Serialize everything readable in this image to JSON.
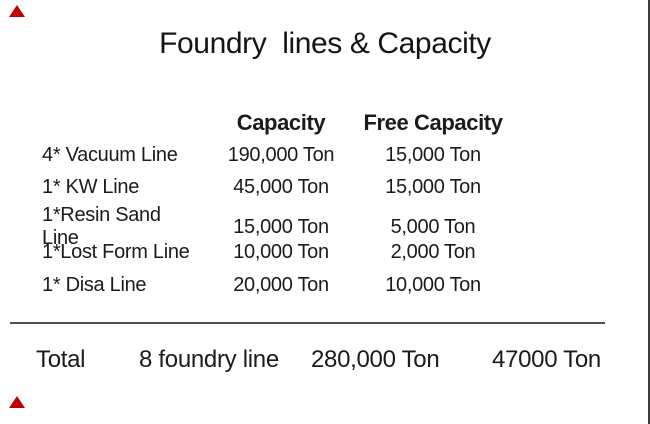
{
  "slide": {
    "title": "Foundry  lines & Capacity"
  },
  "table": {
    "headers": {
      "capacity": "Capacity",
      "free_capacity": "Free Capacity"
    },
    "rows": [
      {
        "label": "4* Vacuum Line",
        "capacity": "190,000 Ton",
        "free": "15,000 Ton"
      },
      {
        "label": "1* KW Line",
        "capacity": "45,000 Ton",
        "free": "15,000 Ton"
      },
      {
        "label": "1*Resin Sand Line",
        "capacity": "15,000 Ton",
        "free": "5,000 Ton"
      },
      {
        "label": "1*Lost Form Line",
        "capacity": "10,000 Ton",
        "free": "2,000 Ton"
      },
      {
        "label": "1* Disa Line",
        "capacity": "20,000 Ton",
        "free": "10,000 Ton"
      }
    ]
  },
  "total": {
    "label": "Total",
    "line_count": "8 foundry line",
    "capacity": "280,000 Ton",
    "free_capacity": "47000 Ton"
  },
  "decorations": {
    "corner_triangle_color": "#c00000",
    "right_border_color": "#3b3b3b",
    "separator_color": "#4f4f4f"
  }
}
